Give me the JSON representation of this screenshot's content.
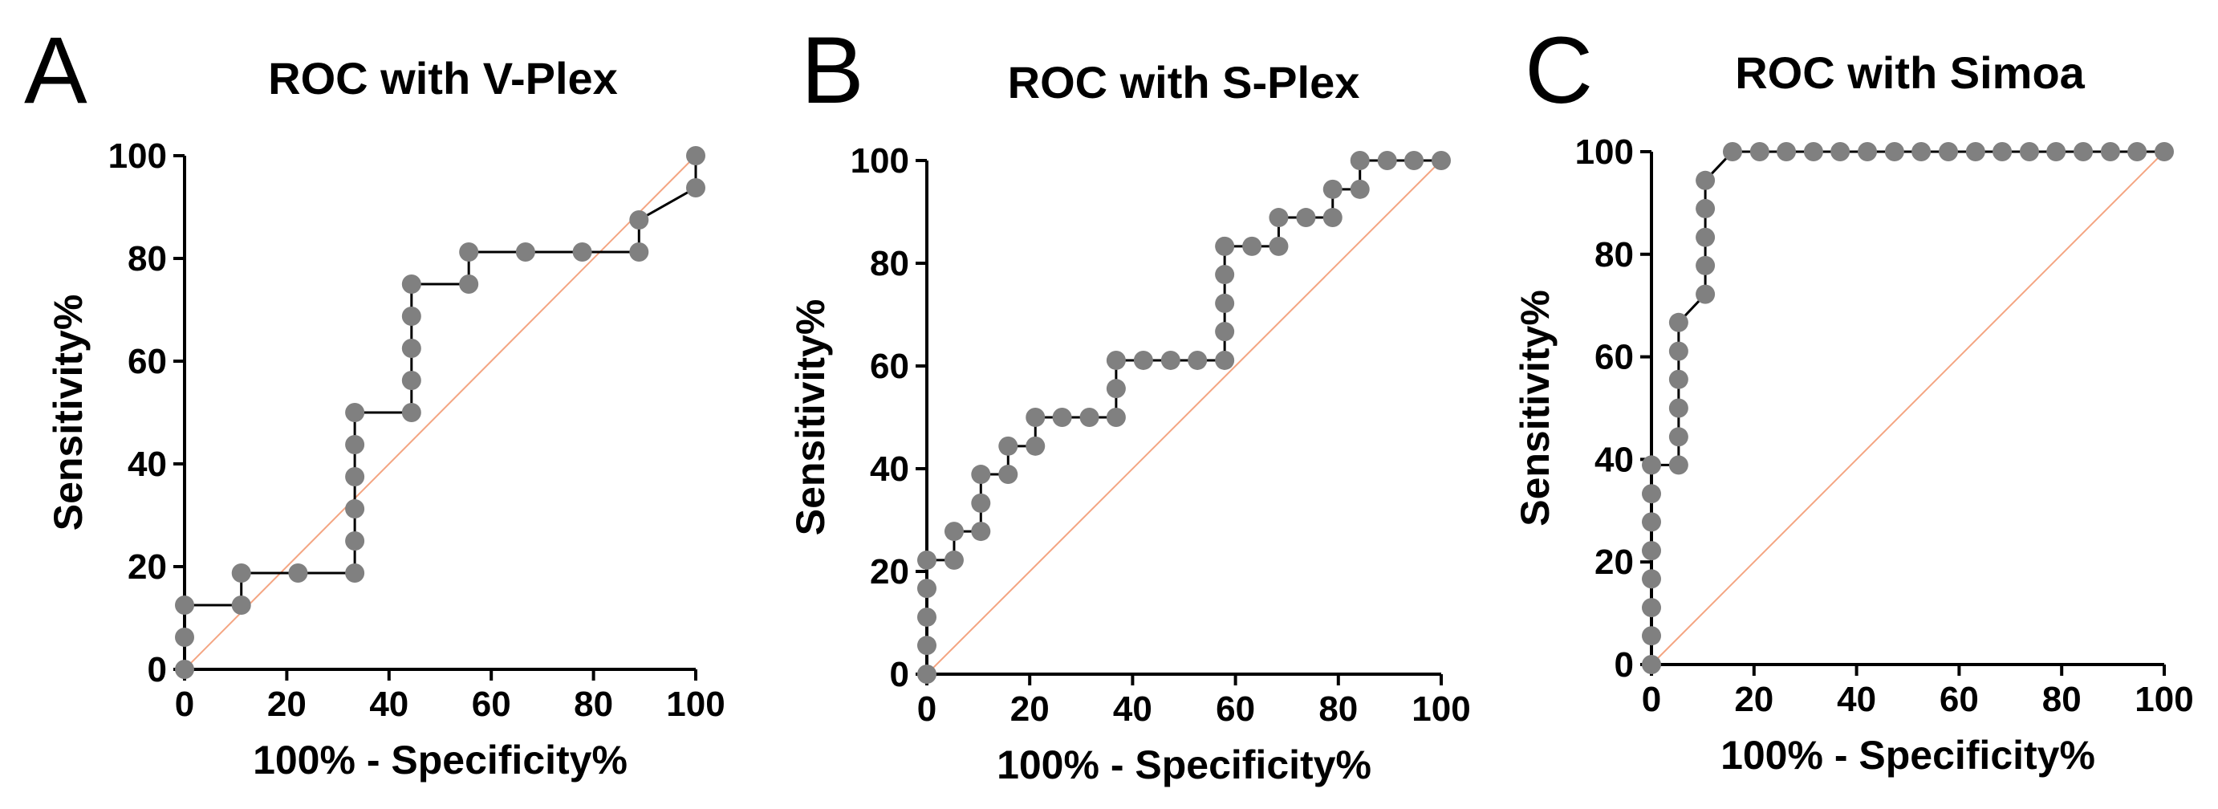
{
  "chart_data": [
    {
      "type": "line",
      "panel_letter": "A",
      "title": "ROC with V-Plex",
      "xlabel": "100% - Specificity%",
      "ylabel": "Sensitivity%",
      "xlim": [
        0,
        100
      ],
      "ylim": [
        0,
        100
      ],
      "xticks": [
        "0",
        "20",
        "40",
        "60",
        "80",
        "100"
      ],
      "yticks": [
        "0",
        "20",
        "40",
        "60",
        "80",
        "100"
      ],
      "grid": false,
      "series": [
        {
          "name": "ROC curve",
          "color": "#000000",
          "marker_color": "#808080",
          "x": [
            0,
            0,
            0,
            11.1,
            11.1,
            22.2,
            33.3,
            33.3,
            33.3,
            33.3,
            33.3,
            33.3,
            44.4,
            44.4,
            44.4,
            44.4,
            44.4,
            55.6,
            55.6,
            66.7,
            77.8,
            88.9,
            88.9,
            100,
            100
          ],
          "y": [
            0,
            6.25,
            12.5,
            12.5,
            18.75,
            18.75,
            18.75,
            25,
            31.25,
            37.5,
            43.75,
            50,
            50,
            56.25,
            62.5,
            68.75,
            75,
            75,
            81.25,
            81.25,
            81.25,
            81.25,
            87.5,
            93.75,
            100
          ]
        },
        {
          "name": "Reference line",
          "color": "#f4a582",
          "x": [
            0,
            100
          ],
          "y": [
            0,
            100
          ]
        }
      ]
    },
    {
      "type": "line",
      "panel_letter": "B",
      "title": "ROC with S-Plex",
      "xlabel": "100% - Specificity%",
      "ylabel": "Sensitivity%",
      "xlim": [
        0,
        100
      ],
      "ylim": [
        0,
        100
      ],
      "xticks": [
        "0",
        "20",
        "40",
        "60",
        "80",
        "100"
      ],
      "yticks": [
        "0",
        "20",
        "40",
        "60",
        "80",
        "100"
      ],
      "grid": false,
      "series": [
        {
          "name": "ROC curve",
          "color": "#000000",
          "marker_color": "#808080",
          "x": [
            0,
            0,
            0,
            0,
            0,
            5.3,
            5.3,
            10.5,
            10.5,
            10.5,
            15.8,
            15.8,
            21.1,
            21.1,
            26.3,
            31.6,
            36.8,
            36.8,
            36.8,
            42.1,
            47.4,
            52.6,
            57.9,
            57.9,
            57.9,
            57.9,
            57.9,
            63.2,
            68.4,
            68.4,
            73.7,
            78.9,
            78.9,
            84.2,
            84.2,
            89.5,
            94.7,
            100
          ],
          "y": [
            0,
            5.6,
            11.1,
            16.7,
            22.2,
            22.2,
            27.8,
            27.8,
            33.3,
            38.9,
            38.9,
            44.4,
            44.4,
            50,
            50,
            50,
            50,
            55.6,
            61.1,
            61.1,
            61.1,
            61.1,
            61.1,
            66.7,
            72.2,
            77.8,
            83.3,
            83.3,
            83.3,
            88.9,
            88.9,
            88.9,
            94.4,
            94.4,
            100,
            100,
            100,
            100
          ]
        },
        {
          "name": "Reference line",
          "color": "#f4a582",
          "x": [
            0,
            100
          ],
          "y": [
            0,
            100
          ]
        }
      ]
    },
    {
      "type": "line",
      "panel_letter": "C",
      "title": "ROC with Simoa",
      "xlabel": "100% - Specificity%",
      "ylabel": "Sensitivity%",
      "xlim": [
        0,
        100
      ],
      "ylim": [
        0,
        100
      ],
      "xticks": [
        "0",
        "20",
        "40",
        "60",
        "80",
        "100"
      ],
      "yticks": [
        "0",
        "20",
        "40",
        "60",
        "80",
        "100"
      ],
      "grid": false,
      "series": [
        {
          "name": "ROC curve",
          "color": "#000000",
          "marker_color": "#808080",
          "x": [
            0,
            0,
            0,
            0,
            0,
            0,
            0,
            0,
            5.3,
            5.3,
            5.3,
            5.3,
            5.3,
            5.3,
            10.5,
            10.5,
            10.5,
            10.5,
            10.5,
            15.8,
            21.1,
            26.3,
            31.6,
            36.8,
            42.1,
            47.4,
            52.6,
            57.9,
            63.2,
            68.4,
            73.7,
            78.9,
            84.2,
            89.5,
            94.7,
            100
          ],
          "y": [
            0,
            5.6,
            11.1,
            16.7,
            22.2,
            27.8,
            33.3,
            38.9,
            38.9,
            44.4,
            50,
            55.6,
            61.1,
            66.7,
            72.2,
            77.8,
            83.3,
            88.9,
            94.4,
            100,
            100,
            100,
            100,
            100,
            100,
            100,
            100,
            100,
            100,
            100,
            100,
            100,
            100,
            100,
            100,
            100
          ]
        },
        {
          "name": "Reference line",
          "color": "#f4a582",
          "x": [
            0,
            100
          ],
          "y": [
            0,
            100
          ]
        }
      ]
    }
  ]
}
